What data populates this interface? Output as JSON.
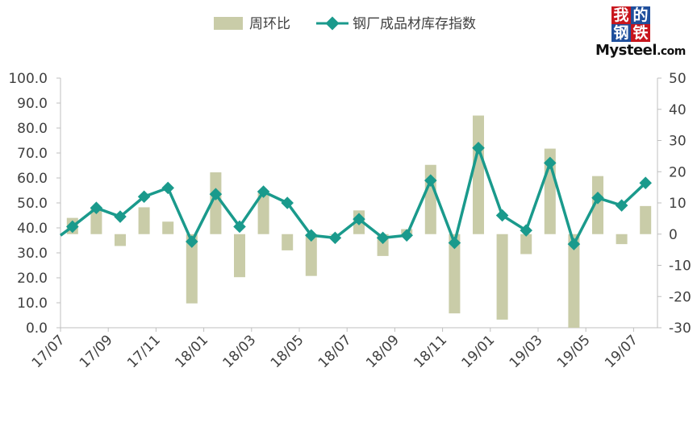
{
  "chart_data": {
    "type": "bar+line",
    "legend": {
      "placement": "top-center",
      "bar_label": "周环比",
      "line_label": "钢厂成品材库存指数"
    },
    "categories": [
      "17/07",
      "17/08",
      "17/09",
      "17/10",
      "17/11",
      "17/12",
      "18/01",
      "18/02",
      "18/03",
      "18/04",
      "18/05",
      "18/06",
      "18/07",
      "18/08",
      "18/09",
      "18/10",
      "18/11",
      "18/12",
      "19/01",
      "19/02",
      "19/03",
      "19/04",
      "19/05",
      "19/06",
      "19/07"
    ],
    "x_tick_labels": [
      "17/07",
      "17/09",
      "17/11",
      "18/01",
      "18/03",
      "18/05",
      "18/07",
      "18/09",
      "18/11",
      "19/01",
      "19/03",
      "19/05",
      "19/07"
    ],
    "series": [
      {
        "name": "周环比",
        "type": "bar",
        "axis": "right",
        "color": "#c9cca8",
        "values": [
          5.2,
          8.6,
          -3.8,
          8.6,
          4.0,
          -22.2,
          19.8,
          -13.8,
          13.2,
          -5.2,
          -13.4,
          -0.2,
          7.6,
          -7.0,
          1.6,
          22.2,
          -25.4,
          38.0,
          -27.4,
          -6.4,
          27.4,
          -30.0,
          18.6,
          -3.2,
          9.0
        ]
      },
      {
        "name": "钢厂成品材库存指数",
        "type": "line",
        "axis": "left",
        "color": "#1a9a8c",
        "values": [
          40.5,
          48.0,
          44.5,
          52.5,
          56.0,
          34.5,
          53.5,
          40.5,
          54.5,
          50.0,
          37.0,
          36.0,
          43.5,
          36.0,
          37.0,
          59.0,
          34.0,
          72.0,
          45.0,
          39.0,
          66.0,
          33.5,
          52.0,
          49.0,
          58.0
        ],
        "start_value": 37.0
      }
    ],
    "y_left": {
      "min": 0,
      "max": 100,
      "step": 10,
      "tick_labels": [
        "0.0",
        "10.0",
        "20.0",
        "30.0",
        "40.0",
        "50.0",
        "60.0",
        "70.0",
        "80.0",
        "90.0",
        "100.0"
      ]
    },
    "y_right": {
      "min": -30,
      "max": 50,
      "step": 10,
      "tick_labels": [
        "-30",
        "-20",
        "-10",
        "0",
        "10",
        "20",
        "30",
        "40",
        "50"
      ]
    },
    "grid": false
  },
  "logo": {
    "chars": [
      "我",
      "的",
      "钢",
      "铁"
    ],
    "text": "Mysteel",
    "suffix": ".com"
  }
}
